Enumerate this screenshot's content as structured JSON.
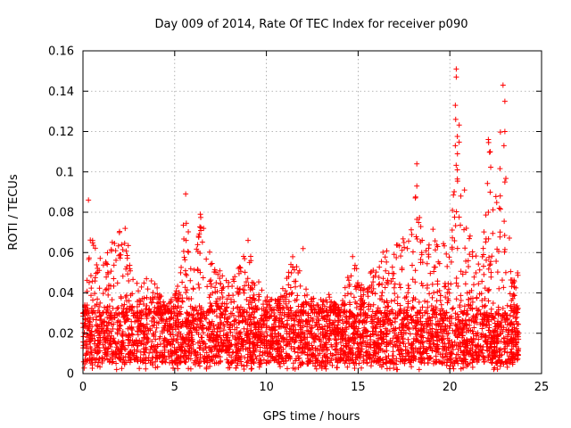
{
  "chart_data": {
    "type": "scatter",
    "title": "Day 009 of 2014, Rate Of TEC Index for receiver p090",
    "xlabel": "GPS time / hours",
    "ylabel": "ROTI / TECUs",
    "xlim": [
      0,
      25
    ],
    "ylim": [
      0,
      0.16
    ],
    "x_ticks": [
      0,
      5,
      10,
      15,
      20,
      25
    ],
    "x_tick_labels": [
      "0",
      "5",
      "10",
      "15",
      "20",
      "25"
    ],
    "y_ticks": [
      0,
      0.02,
      0.04,
      0.06,
      0.08,
      0.1,
      0.12,
      0.14,
      0.16
    ],
    "y_tick_labels": [
      "0",
      "0.02",
      "0.04",
      "0.06",
      "0.08",
      "0.1",
      "0.12",
      "0.14",
      "0.16"
    ],
    "grid": true,
    "marker": "+",
    "marker_color": "#ff0000",
    "series": [
      {
        "name": "ROTI",
        "x_range": [
          0,
          23.75
        ],
        "typical_range": [
          0.005,
          0.03
        ],
        "envelope": [
          [
            0,
            0.022
          ],
          [
            0.4,
            0.069
          ],
          [
            1,
            0.058
          ],
          [
            1.5,
            0.065
          ],
          [
            2.2,
            0.073
          ],
          [
            3,
            0.045
          ],
          [
            3.7,
            0.049
          ],
          [
            4.5,
            0.034
          ],
          [
            5.2,
            0.045
          ],
          [
            5.6,
            0.09
          ],
          [
            6,
            0.05
          ],
          [
            6.4,
            0.08
          ],
          [
            7,
            0.057
          ],
          [
            7.5,
            0.052
          ],
          [
            8,
            0.047
          ],
          [
            8.5,
            0.055
          ],
          [
            9,
            0.066
          ],
          [
            9.5,
            0.047
          ],
          [
            10,
            0.038
          ],
          [
            10.7,
            0.037
          ],
          [
            11.5,
            0.062
          ],
          [
            12,
            0.045
          ],
          [
            12.5,
            0.037
          ],
          [
            13.2,
            0.042
          ],
          [
            14,
            0.032
          ],
          [
            14.7,
            0.058
          ],
          [
            15.3,
            0.043
          ],
          [
            16,
            0.058
          ],
          [
            16.5,
            0.062
          ],
          [
            17,
            0.065
          ],
          [
            17.5,
            0.068
          ],
          [
            18,
            0.075
          ],
          [
            18.2,
            0.105
          ],
          [
            18.5,
            0.065
          ],
          [
            18.8,
            0.065
          ],
          [
            19.2,
            0.08
          ],
          [
            19.6,
            0.063
          ],
          [
            20.1,
            0.085
          ],
          [
            20.4,
            0.153
          ],
          [
            20.7,
            0.092
          ],
          [
            21,
            0.07
          ],
          [
            21.4,
            0.065
          ],
          [
            21.8,
            0.06
          ],
          [
            22.1,
            0.116
          ],
          [
            22.5,
            0.088
          ],
          [
            22.9,
            0.143
          ],
          [
            23.3,
            0.06
          ],
          [
            23.7,
            0.05
          ]
        ],
        "spikes": [
          [
            0.3,
            0.086
          ],
          [
            5.6,
            0.089
          ],
          [
            6.4,
            0.079
          ],
          [
            9.0,
            0.066
          ],
          [
            18.2,
            0.104
          ],
          [
            18.2,
            0.093
          ],
          [
            20.35,
            0.151
          ],
          [
            20.35,
            0.147
          ],
          [
            20.3,
            0.133
          ],
          [
            20.3,
            0.113
          ],
          [
            20.6,
            0.088
          ],
          [
            20.8,
            0.091
          ],
          [
            22.1,
            0.116
          ],
          [
            22.2,
            0.11
          ],
          [
            22.9,
            0.143
          ],
          [
            23.0,
            0.135
          ],
          [
            23.0,
            0.12
          ],
          [
            22.95,
            0.113
          ],
          [
            23.0,
            0.095
          ],
          [
            22.1,
            0.08
          ],
          [
            22.7,
            0.082
          ],
          [
            17.5,
            0.065
          ],
          [
            12.0,
            0.062
          ],
          [
            14.7,
            0.058
          ],
          [
            2.3,
            0.072
          ]
        ]
      }
    ]
  }
}
